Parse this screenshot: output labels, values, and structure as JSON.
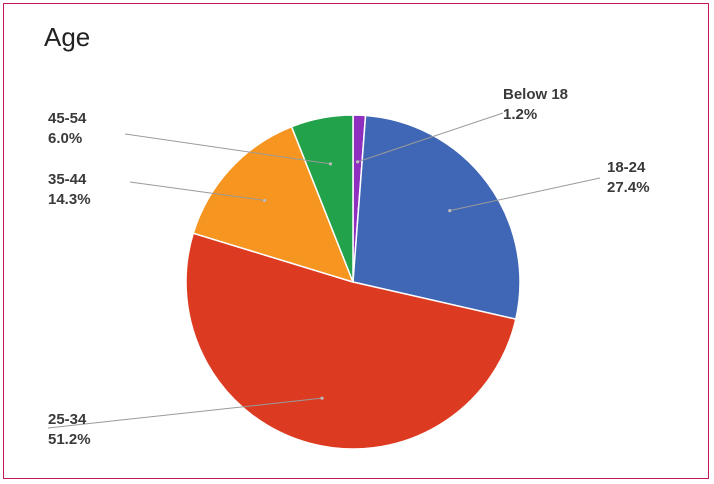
{
  "chart_data": {
    "type": "pie",
    "title": "Age",
    "slices": [
      {
        "label": "Below 18",
        "value": 1.2,
        "display": "1.2%",
        "color": "#8e2fc0"
      },
      {
        "label": "18-24",
        "value": 27.4,
        "display": "27.4%",
        "color": "#4067b5"
      },
      {
        "label": "25-34",
        "value": 51.2,
        "display": "51.2%",
        "color": "#dc3b22"
      },
      {
        "label": "35-44",
        "value": 14.3,
        "display": "14.3%",
        "color": "#f6951f"
      },
      {
        "label": "45-54",
        "value": 6.0,
        "display": "6.0%",
        "color": "#22a24a"
      }
    ],
    "start_angle_deg": 0,
    "direction": "clockwise",
    "legend": "none"
  }
}
